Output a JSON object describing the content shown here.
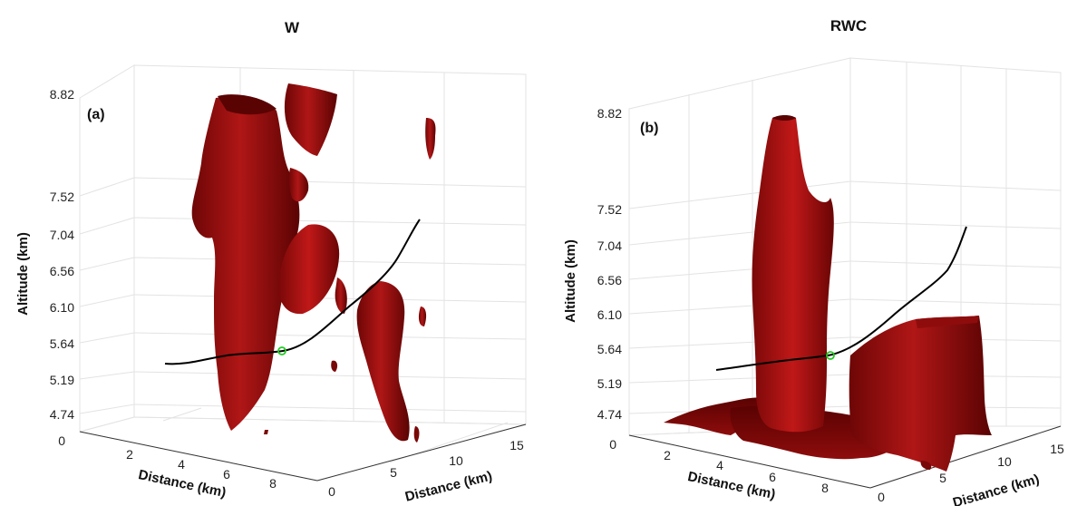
{
  "chart_data": [
    {
      "type": "surface3d",
      "panel": "(a)",
      "title": "W",
      "zlabel": "Altitude (km)",
      "xlabel": "Distance (km)",
      "ylabel": "Distance (km)",
      "z_ticks": [
        "0",
        "4.74",
        "5.19",
        "5.64",
        "6.10",
        "6.56",
        "7.04",
        "7.52",
        "8.82"
      ],
      "x_ticks": [
        "2",
        "4",
        "6",
        "8"
      ],
      "y_ticks": [
        "0",
        "5",
        "10",
        "15"
      ],
      "surface_color": "#8b0a0a",
      "track_color": "#000000",
      "marker_color": "#22cc22",
      "grid": true
    },
    {
      "type": "surface3d",
      "panel": "(b)",
      "title": "RWC",
      "zlabel": "Altitude (km)",
      "xlabel": "Distance (km)",
      "ylabel": "Distance (km)",
      "z_ticks": [
        "0",
        "4.74",
        "5.19",
        "5.64",
        "6.10",
        "6.56",
        "7.04",
        "7.52",
        "8.82"
      ],
      "x_ticks": [
        "2",
        "4",
        "6",
        "8"
      ],
      "y_ticks": [
        "0",
        "5",
        "10",
        "15"
      ],
      "surface_color": "#8b0a0a",
      "track_color": "#000000",
      "marker_color": "#22cc22",
      "grid": true
    }
  ]
}
